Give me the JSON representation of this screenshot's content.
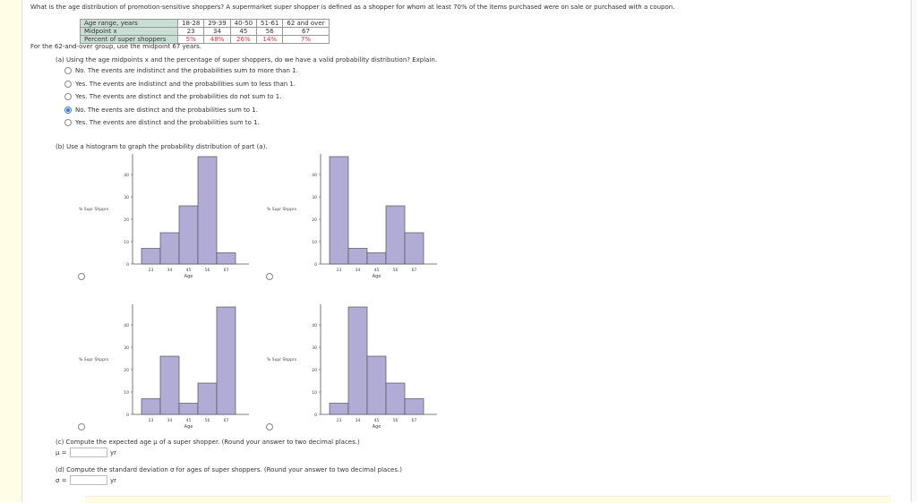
{
  "question": "What is the age distribution of promotion-sensitive shoppers? A supermarket super shopper is defined as a shopper for whom at least 70% of the items purchased were on sale or purchased with a coupon.",
  "table": {
    "rows": [
      {
        "label": "Age range, years",
        "cells": [
          "18-28",
          "29-39",
          "40-50",
          "51-61",
          "62 and over"
        ]
      },
      {
        "label": "Midpoint x",
        "cells": [
          "23",
          "34",
          "45",
          "56",
          "67"
        ]
      },
      {
        "label": "Percent of super shoppers",
        "cells": [
          "5%",
          "48%",
          "26%",
          "14%",
          "7%"
        ]
      }
    ]
  },
  "note": "For the 62-and-over group, use the midpoint 67 years.",
  "part_a": {
    "prompt": "(a) Using the age midpoints x and the percentage of super shoppers, do we have a valid probability distribution? Explain.",
    "options": [
      "No. The events are indistinct and the probabilities sum to more than 1.",
      "Yes. The events are indistinct and the probabilities sum to less than 1.",
      "Yes. The events are distinct and the probabilities do not sum to 1.",
      "No. The events are distinct and the probabilities sum to 1.",
      "Yes. The events are distinct and the probabilities sum to 1."
    ],
    "selected": 3
  },
  "part_b": {
    "prompt": "(b) Use a histogram to graph the probability distribution of part (a)."
  },
  "chart_data": [
    {
      "type": "bar",
      "categories": [
        "23",
        "34",
        "45",
        "56",
        "67"
      ],
      "values": [
        7,
        14,
        26,
        48,
        5
      ],
      "xlabel": "Age",
      "ylabel": "% Supr Shpprs",
      "ylim": [
        0,
        50
      ],
      "yticks": [
        0,
        10,
        20,
        30,
        40
      ]
    },
    {
      "type": "bar",
      "categories": [
        "23",
        "34",
        "45",
        "56",
        "67"
      ],
      "values": [
        48,
        7,
        5,
        26,
        14
      ],
      "xlabel": "Age",
      "ylabel": "% Supr Shpprs",
      "ylim": [
        0,
        50
      ],
      "yticks": [
        0,
        10,
        20,
        30,
        40
      ]
    },
    {
      "type": "bar",
      "categories": [
        "23",
        "34",
        "45",
        "56",
        "67"
      ],
      "values": [
        7,
        26,
        5,
        14,
        48
      ],
      "xlabel": "Age",
      "ylabel": "% Supr Shpprs",
      "ylim": [
        0,
        50
      ],
      "yticks": [
        0,
        10,
        20,
        30,
        40
      ]
    },
    {
      "type": "bar",
      "categories": [
        "23",
        "34",
        "45",
        "56",
        "67"
      ],
      "values": [
        5,
        48,
        26,
        14,
        7
      ],
      "xlabel": "Age",
      "ylabel": "% Supr Shpprs",
      "ylim": [
        0,
        50
      ],
      "yticks": [
        0,
        10,
        20,
        30,
        40
      ]
    }
  ],
  "bar_color": "#b0acd6",
  "part_c": {
    "prompt": "(c) Compute the expected age μ of a super shopper. (Round your answer to two decimal places.)",
    "label": "μ =",
    "unit": "yr",
    "value": ""
  },
  "part_d": {
    "prompt": "(d) Compute the standard deviation σ for ages of super shoppers. (Round your answer to two decimal places.)",
    "label": "σ =",
    "unit": "yr",
    "value": ""
  }
}
